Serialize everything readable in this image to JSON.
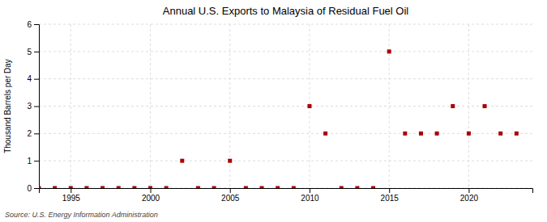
{
  "chart_data": {
    "type": "scatter",
    "title": "Annual U.S. Exports to Malaysia of Residual Fuel Oil",
    "ylabel": "Thousand Barrels per Day",
    "annotations": [
      "Source: U.S. Energy Information Administration"
    ],
    "x": [
      1993,
      1994,
      1995,
      1996,
      1997,
      1998,
      1999,
      2000,
      2001,
      2002,
      2003,
      2004,
      2005,
      2006,
      2007,
      2008,
      2009,
      2010,
      2011,
      2012,
      2013,
      2014,
      2015,
      2016,
      2017,
      2018,
      2019,
      2020,
      2021,
      2022,
      2023
    ],
    "values": [
      0,
      0,
      0,
      0,
      0,
      0,
      0,
      0,
      0,
      1,
      0,
      0,
      1,
      0,
      0,
      0,
      0,
      3,
      2,
      0,
      0,
      0,
      5,
      2,
      2,
      2,
      3,
      2,
      3,
      2,
      2
    ],
    "color": "#aa0000",
    "marker": "square",
    "xlim": [
      1993,
      2024
    ],
    "xticks": [
      1995,
      2000,
      2005,
      2010,
      2015,
      2020
    ],
    "ylim": [
      0,
      6
    ],
    "yticks": [
      0,
      1,
      2,
      3,
      4,
      5,
      6
    ],
    "grid": true
  }
}
